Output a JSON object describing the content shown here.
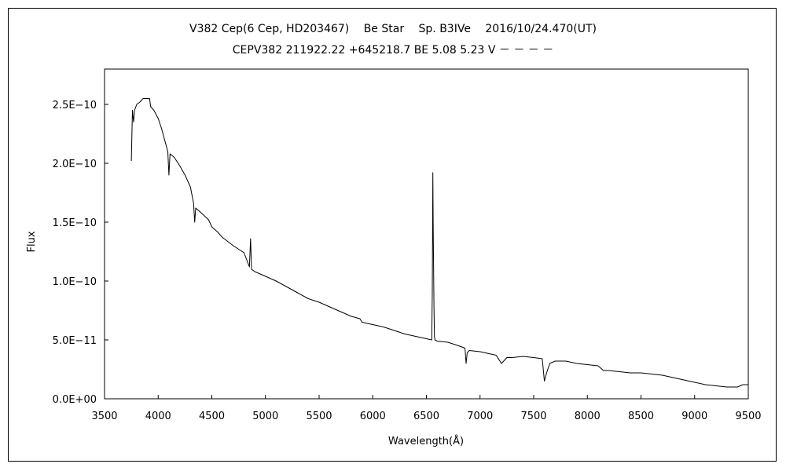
{
  "chart_data": {
    "type": "line",
    "title": "V382 Cep(6 Cep, HD203467)　 Be Star　 Sp. B3IVe　 2016/10/24.470(UT)",
    "subtitle": "CEPV382 211922.22 +645218.7 BE 5.08 5.23 V － － － －",
    "xlabel": "Wavelength(Å)",
    "ylabel": "Flux",
    "xlim": [
      3500,
      9500
    ],
    "ylim": [
      0,
      2.8e-10
    ],
    "x_ticks": [
      3500,
      4000,
      4500,
      5000,
      5500,
      6000,
      6500,
      7000,
      7500,
      8000,
      8500,
      9000,
      9500
    ],
    "y_ticks": [
      {
        "value": 0,
        "label": "0.0E+00"
      },
      {
        "value": 5e-11,
        "label": "5.0E−11"
      },
      {
        "value": 1e-10,
        "label": "1.0E−10"
      },
      {
        "value": 1.5e-10,
        "label": "1.5E−10"
      },
      {
        "value": 2e-10,
        "label": "2.0E−10"
      },
      {
        "value": 2.5e-10,
        "label": "2.5E−10"
      }
    ],
    "grid": false,
    "line_color": "#000000",
    "series": [
      {
        "x": [
          3750,
          3760,
          3770,
          3780,
          3800,
          3830,
          3860,
          3890,
          3920,
          3930,
          3960,
          4000,
          4030,
          4060,
          4090,
          4100,
          4110,
          4150,
          4200,
          4250,
          4300,
          4330,
          4340,
          4350,
          4400,
          4470,
          4500,
          4550,
          4600,
          4700,
          4800,
          4850,
          4861,
          4870,
          4900,
          5000,
          5100,
          5200,
          5300,
          5400,
          5500,
          5600,
          5800,
          5880,
          5900,
          6000,
          6100,
          6200,
          6300,
          6400,
          6500,
          6550,
          6555,
          6560,
          6563,
          6570,
          6575,
          6580,
          6600,
          6700,
          6800,
          6860,
          6870,
          6880,
          6900,
          7000,
          7100,
          7150,
          7200,
          7250,
          7300,
          7400,
          7500,
          7580,
          7600,
          7620,
          7650,
          7700,
          7800,
          7900,
          8000,
          8100,
          8150,
          8200,
          8300,
          8400,
          8500,
          8600,
          8700,
          8800,
          8900,
          9000,
          9100,
          9200,
          9300,
          9400,
          9450,
          9500
        ],
        "y": [
          2.02e-10,
          2.45e-10,
          2.35e-10,
          2.45e-10,
          2.5e-10,
          2.52e-10,
          2.55e-10,
          2.55e-10,
          2.55e-10,
          2.48e-10,
          2.45e-10,
          2.38e-10,
          2.3e-10,
          2.2e-10,
          2.1e-10,
          1.9e-10,
          2.08e-10,
          2.05e-10,
          1.98e-10,
          1.9e-10,
          1.8e-10,
          1.66e-10,
          1.5e-10,
          1.62e-10,
          1.58e-10,
          1.52e-10,
          1.46e-10,
          1.42e-10,
          1.37e-10,
          1.3e-10,
          1.24e-10,
          1.12e-10,
          1.36e-10,
          1.1e-10,
          1.08e-10,
          1.04e-10,
          1e-10,
          9.5e-11,
          9e-11,
          8.5e-11,
          8.2e-11,
          7.8e-11,
          7e-11,
          6.8e-11,
          6.5e-11,
          6.3e-11,
          6.1e-11,
          5.8e-11,
          5.5e-11,
          5.3e-11,
          5.1e-11,
          5e-11,
          9e-11,
          1.92e-10,
          1.5e-10,
          8e-11,
          5.3e-11,
          5e-11,
          4.9e-11,
          4.8e-11,
          4.5e-11,
          4.3e-11,
          3e-11,
          3.9e-11,
          4.1e-11,
          4e-11,
          3.8e-11,
          3.7e-11,
          3e-11,
          3.5e-11,
          3.5e-11,
          3.6e-11,
          3.5e-11,
          3.4e-11,
          1.5e-11,
          2.2e-11,
          3e-11,
          3.2e-11,
          3.2e-11,
          3e-11,
          2.9e-11,
          2.8e-11,
          2.4e-11,
          2.4e-11,
          2.3e-11,
          2.2e-11,
          2.2e-11,
          2.1e-11,
          2e-11,
          1.8e-11,
          1.6e-11,
          1.4e-11,
          1.2e-11,
          1.1e-11,
          1e-11,
          1e-11,
          1.2e-11,
          1.2e-11
        ]
      }
    ]
  }
}
